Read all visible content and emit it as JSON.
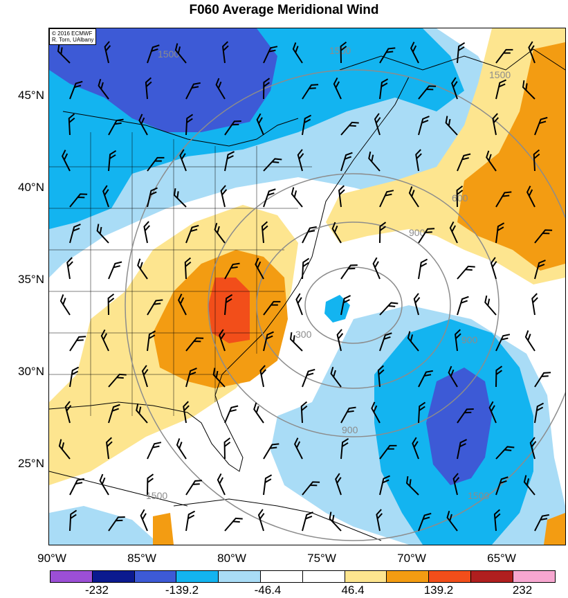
{
  "title": "F060 Average Meridional Wind",
  "credit": {
    "line1": "© 2016 ECMWF",
    "line2": "R. Torn, UAlbany"
  },
  "lat_labels": [
    "45°N",
    "40°N",
    "35°N",
    "30°N",
    "25°N"
  ],
  "lon_labels": [
    "90°W",
    "85°W",
    "80°W",
    "75°W",
    "70°W",
    "65°W"
  ],
  "colorbar": {
    "colors": [
      "#9c4fd6",
      "#0b1a8f",
      "#3d5ad6",
      "#13b4f0",
      "#a9dcf6",
      "#ffffff",
      "#ffffff",
      "#fde58f",
      "#f39c12",
      "#f24e1a",
      "#b01f1f",
      "#f7a7d0"
    ],
    "labels": [
      "-232",
      "-139.2",
      "-46.4",
      "46.4",
      "139.2",
      "232"
    ]
  },
  "contour_labels": [
    "300",
    "900",
    "900",
    "1500",
    "1500",
    "1500",
    "1500",
    "600",
    "900",
    "1500"
  ],
  "fill_colors": {
    "dark_blue": "#3d5ad6",
    "blue": "#13b4f0",
    "light_blue": "#a9dcf6",
    "yellow": "#fde58f",
    "orange": "#f39c12",
    "red": "#f24e1a"
  }
}
